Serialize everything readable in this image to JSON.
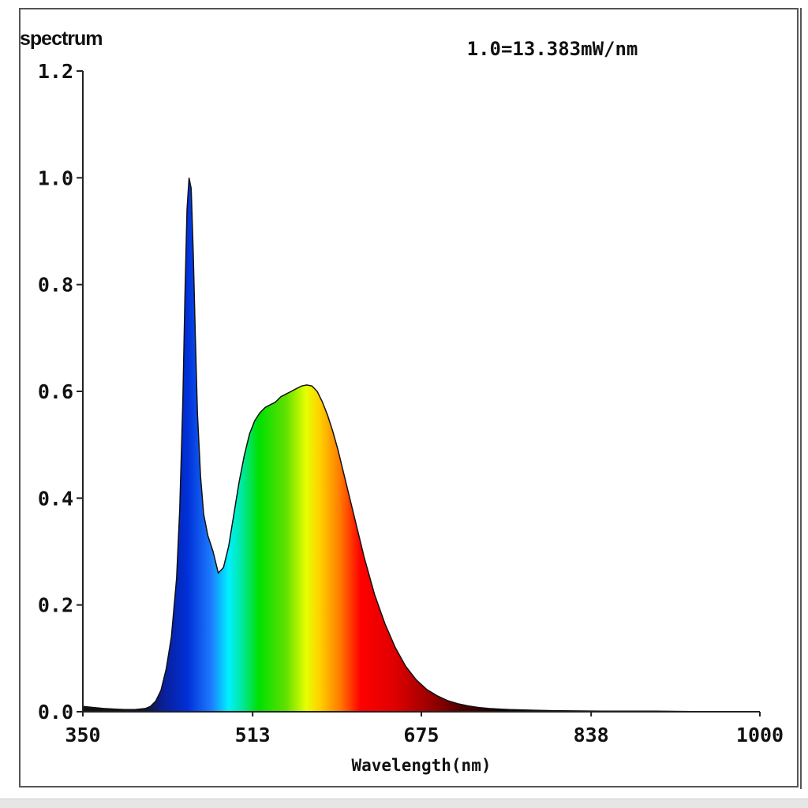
{
  "chart_data": {
    "type": "area",
    "title": "spectrum",
    "scale_note": "1.0=13.383mW/nm",
    "xlabel": "Wavelength(nm)",
    "ylabel": "",
    "xlim": [
      350,
      1000
    ],
    "ylim": [
      0,
      1.2
    ],
    "x_ticks": [
      "350",
      "513",
      "675",
      "838",
      "1000"
    ],
    "y_ticks": [
      "0.0",
      "0.2",
      "0.4",
      "0.6",
      "0.8",
      "1.0",
      "1.2"
    ],
    "grid": false,
    "legend": "none",
    "fill": "visible-spectrum color gradient",
    "series": [
      {
        "x": [
          350,
          360,
          370,
          380,
          390,
          400,
          410,
          415,
          420,
          425,
          430,
          435,
          440,
          443,
          446,
          448,
          450,
          452,
          454,
          456,
          458,
          460,
          463,
          466,
          470,
          475,
          480,
          485,
          490,
          495,
          500,
          505,
          510,
          515,
          520,
          525,
          530,
          535,
          540,
          545,
          550,
          555,
          560,
          565,
          570,
          575,
          580,
          585,
          590,
          595,
          600,
          605,
          610,
          615,
          620,
          625,
          630,
          640,
          650,
          660,
          670,
          680,
          690,
          700,
          710,
          720,
          730,
          740,
          750,
          760,
          780,
          800,
          850,
          900,
          950,
          1000
        ],
        "y": [
          0.01,
          0.008,
          0.006,
          0.005,
          0.004,
          0.004,
          0.006,
          0.01,
          0.02,
          0.04,
          0.08,
          0.14,
          0.25,
          0.38,
          0.58,
          0.78,
          0.94,
          1.0,
          0.98,
          0.86,
          0.7,
          0.56,
          0.44,
          0.37,
          0.33,
          0.3,
          0.26,
          0.27,
          0.31,
          0.37,
          0.43,
          0.48,
          0.52,
          0.545,
          0.56,
          0.57,
          0.575,
          0.58,
          0.59,
          0.595,
          0.6,
          0.605,
          0.61,
          0.612,
          0.61,
          0.6,
          0.58,
          0.555,
          0.525,
          0.49,
          0.45,
          0.41,
          0.37,
          0.33,
          0.29,
          0.255,
          0.22,
          0.165,
          0.12,
          0.085,
          0.06,
          0.042,
          0.03,
          0.021,
          0.015,
          0.011,
          0.008,
          0.006,
          0.005,
          0.004,
          0.003,
          0.002,
          0.001,
          0.001,
          0.0,
          0.0
        ]
      }
    ]
  }
}
